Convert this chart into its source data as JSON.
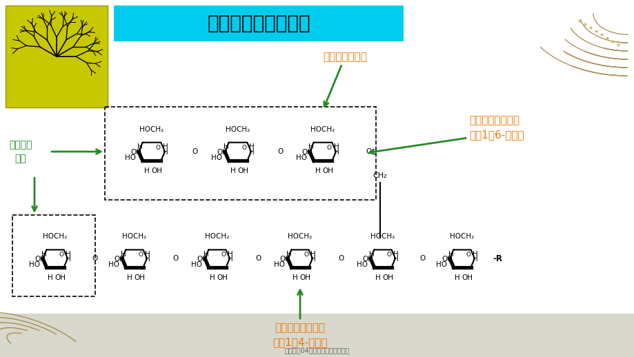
{
  "bg_color": "#f5f5f0",
  "title_text": "支链淀粉的分枝结构",
  "title_bg": "#00ccee",
  "title_color": "#000000",
  "title_fontsize": 20,
  "ann1_text": "开始分枝的残基",
  "ann1_color": "#ee7700",
  "ann2_text": "两个葡萄糖单位之\n间的1，6-糖苷键",
  "ann2_color": "#ee7700",
  "ann3_text": "非还原端\n残基",
  "ann3_color": "#228B22",
  "ann4_text": "两个葡萄糖单位之\n间的1，4-糖苷键",
  "ann4_color": "#ee7700",
  "footer_text": "生化实验04淀粉酶活性的测定陈桃",
  "footer_color": "#666666",
  "arrow_color": "#228B22",
  "ring_color": "#000000",
  "ring_lw": 1.5,
  "label_fontsize": 7.5,
  "ann_fontsize": 10
}
